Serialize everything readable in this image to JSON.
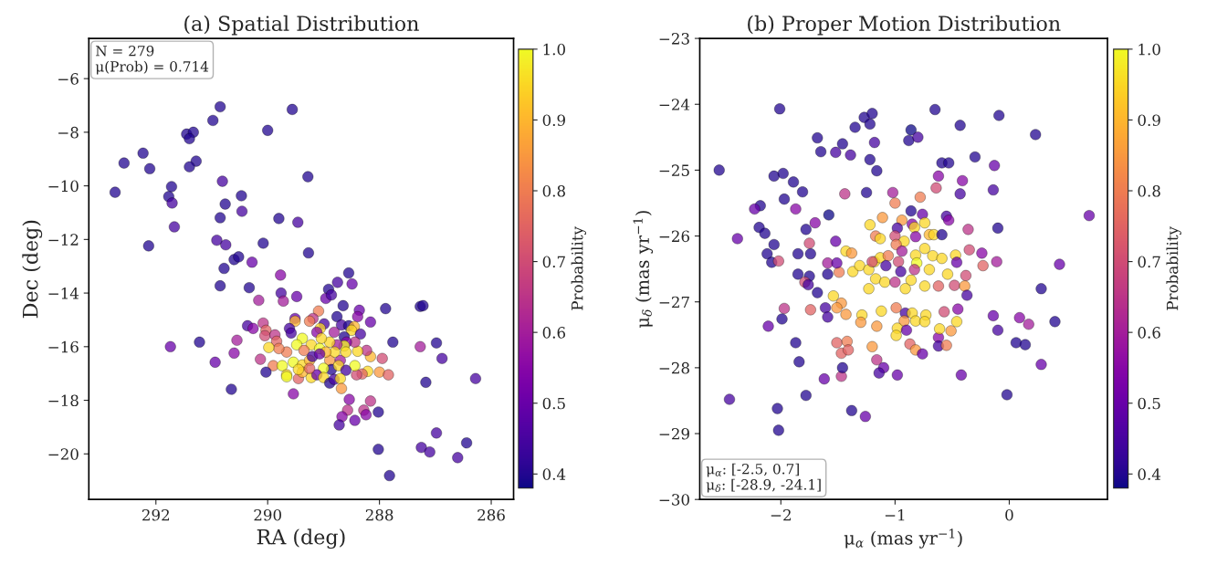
{
  "chart_data": [
    {
      "type": "scatter",
      "title": "(a) Spatial Distribution",
      "xlabel": "RA (deg)",
      "ylabel": "Dec (deg)",
      "clabel": "Probability",
      "marker": "circle",
      "xlim": [
        293.2,
        285.6
      ],
      "ylim": [
        -21.7,
        -4.5
      ],
      "xticks": [
        292,
        290,
        288,
        286
      ],
      "yticks": [
        {
          "value": -20,
          "label": "−20"
        },
        {
          "value": -18,
          "label": "−18"
        },
        {
          "value": -16,
          "label": "−16"
        },
        {
          "value": -14,
          "label": "−14"
        },
        {
          "value": -12,
          "label": "−12"
        },
        {
          "value": -10,
          "label": "−10"
        },
        {
          "value": -8,
          "label": "−8"
        },
        {
          "value": -6,
          "label": "−6"
        }
      ],
      "clim": [
        0.38,
        1.0
      ],
      "cticks": [
        0.4,
        0.5,
        0.6,
        0.7,
        0.8,
        0.9,
        {
          "value": 1.0,
          "label": "1.0"
        }
      ],
      "annotations": [
        "N = 279",
        "μ(Prob) = 0.714"
      ],
      "x": [
        290.85,
        289.56,
        290.98,
        290.0,
        291.45,
        291.33,
        291.4,
        292.23,
        292.57,
        292.11,
        291.28,
        291.4,
        289.28,
        290.81,
        292.73,
        291.72,
        291.77,
        291.71,
        290.47,
        290.76,
        290.46,
        290.85,
        289.8,
        289.46,
        291.67,
        290.91,
        290.75,
        290.08,
        292.13,
        289.27,
        290.6,
        290.52,
        290.28,
        290.78,
        290.85,
        290.33,
        289.77,
        289.76,
        289.48,
        290.16,
        289.72,
        288.55,
        288.75,
        288.49,
        288.91,
        288.96,
        288.86,
        287.89,
        287.27,
        287.22,
        288.65,
        288.76,
        288.36,
        288.39,
        288.16,
        289.09,
        289.19,
        289.25,
        289.51,
        289.51,
        290.36,
        290.26,
        290.08,
        290.03,
        290.05,
        289.87,
        289.84,
        289.61,
        289.58,
        288.99,
        289.06,
        289.12,
        288.68,
        288.55,
        288.45,
        288.5,
        288.34,
        288.81,
        288.63,
        287.76,
        286.98,
        287.27,
        286.88,
        286.28,
        287.17,
        287.95,
        288.0,
        287.84,
        288.16,
        288.23,
        288.21,
        288.31,
        288.41,
        288.44,
        288.39,
        288.44,
        288.59,
        288.63,
        288.76,
        288.89,
        289.04,
        289.38,
        289.48,
        289.22,
        289.07,
        289.35,
        289.66,
        289.8,
        289.98,
        290.13,
        289.9,
        289.74,
        289.54,
        289.38,
        289.25,
        289.2,
        288.89,
        288.7,
        288.6,
        288.8,
        288.96,
        289.07,
        288.86,
        289.0,
        288.73,
        288.6,
        289.66,
        289.66,
        289.45,
        289.22,
        289.12,
        289.0,
        288.89,
        288.81,
        288.7,
        289.38,
        290.03,
        289.45,
        289.25,
        288.68,
        289.54,
        290.65,
        290.94,
        290.6,
        290.55,
        291.22,
        291.74,
        288.54,
        288.16,
        288.57,
        288.28,
        288.24,
        288.67,
        288.44,
        288.02,
        288.72,
        288.02,
        286.98,
        287.25,
        287.1,
        286.44,
        286.6,
        287.82
      ],
      "values": [
        -7.05,
        -7.15,
        -7.56,
        -7.93,
        -8.07,
        -8.0,
        -8.24,
        -8.78,
        -9.15,
        -9.36,
        -9.08,
        -9.29,
        -9.66,
        -9.83,
        -10.24,
        -10.03,
        -10.4,
        -10.64,
        -10.37,
        -10.68,
        -10.95,
        -11.19,
        -11.22,
        -11.36,
        -11.53,
        -12.03,
        -12.2,
        -12.14,
        -12.24,
        -12.5,
        -12.75,
        -12.65,
        -12.85,
        -13.08,
        -13.73,
        -13.8,
        -13.33,
        -14.0,
        -14.13,
        -14.27,
        -14.3,
        -13.25,
        -13.6,
        -13.66,
        -13.86,
        -14.2,
        -14.07,
        -14.58,
        -14.5,
        -14.47,
        -14.47,
        -14.88,
        -14.64,
        -14.88,
        -15.08,
        -14.67,
        -14.95,
        -15.05,
        -14.95,
        -15.05,
        -15.22,
        -15.32,
        -15.12,
        -15.39,
        -15.59,
        -15.56,
        -15.8,
        -15.32,
        -15.49,
        -15.15,
        -15.32,
        -15.46,
        -15.19,
        -15.22,
        -15.25,
        -15.39,
        -15.53,
        -15.46,
        -15.63,
        -15.83,
        -15.86,
        -16.0,
        -16.44,
        -17.19,
        -17.33,
        -16.44,
        -16.95,
        -17.05,
        -16.37,
        -16.14,
        -16.92,
        -17.02,
        -17.05,
        -16.71,
        -16.17,
        -15.83,
        -15.83,
        -15.97,
        -15.93,
        -15.83,
        -15.69,
        -15.69,
        -15.93,
        -15.93,
        -16.07,
        -16.14,
        -16.2,
        -16.07,
        -16.03,
        -16.47,
        -16.71,
        -16.71,
        -16.58,
        -16.68,
        -16.51,
        -16.37,
        -16.51,
        -16.51,
        -16.2,
        -16.2,
        -16.2,
        -16.27,
        -16.85,
        -16.81,
        -16.71,
        -16.88,
        -17.05,
        -17.12,
        -17.19,
        -17.15,
        -17.05,
        -17.15,
        -17.36,
        -17.22,
        -17.19,
        -16.95,
        -16.95,
        -16.85,
        -16.81,
        -17.56,
        -17.76,
        -17.59,
        -16.58,
        -16.24,
        -15.76,
        -15.83,
        -16.0,
        -17.97,
        -18.03,
        -18.37,
        -18.37,
        -18.54,
        -18.61,
        -18.75,
        -18.44,
        -18.92,
        -19.83,
        -19.22,
        -19.76,
        -19.93,
        -19.59,
        -20.14,
        -20.81
      ],
      "cvalues": [
        0.4,
        0.4,
        0.4,
        0.4,
        0.4,
        0.4,
        0.4,
        0.4,
        0.4,
        0.4,
        0.4,
        0.4,
        0.4,
        0.45,
        0.4,
        0.4,
        0.4,
        0.45,
        0.4,
        0.4,
        0.45,
        0.4,
        0.4,
        0.45,
        0.45,
        0.45,
        0.45,
        0.4,
        0.4,
        0.4,
        0.4,
        0.4,
        0.5,
        0.4,
        0.4,
        0.4,
        0.55,
        0.45,
        0.5,
        0.6,
        0.6,
        0.4,
        0.45,
        0.5,
        0.4,
        0.5,
        0.45,
        0.4,
        0.4,
        0.4,
        0.4,
        0.4,
        0.5,
        0.55,
        0.5,
        0.8,
        0.65,
        0.8,
        0.5,
        0.9,
        0.45,
        0.55,
        0.65,
        0.75,
        0.7,
        0.65,
        0.75,
        0.45,
        0.45,
        0.45,
        0.95,
        0.55,
        0.45,
        0.4,
        0.9,
        0.95,
        0.45,
        0.6,
        0.4,
        0.4,
        0.4,
        0.6,
        0.45,
        0.45,
        0.4,
        0.7,
        0.85,
        0.75,
        0.9,
        0.65,
        0.95,
        0.75,
        0.7,
        1.0,
        0.95,
        0.65,
        0.55,
        1.0,
        0.6,
        0.95,
        0.95,
        1.0,
        1.0,
        0.95,
        1.0,
        0.8,
        0.8,
        0.8,
        0.95,
        0.65,
        0.8,
        1.0,
        1.0,
        0.95,
        0.9,
        0.45,
        0.85,
        0.6,
        0.95,
        0.95,
        0.9,
        0.5,
        0.4,
        1.0,
        0.95,
        0.45,
        0.95,
        1.0,
        0.75,
        0.95,
        0.5,
        0.95,
        0.4,
        0.45,
        0.95,
        0.9,
        0.4,
        0.95,
        0.75,
        0.85,
        0.55,
        0.4,
        0.5,
        0.55,
        0.6,
        0.4,
        0.5,
        0.55,
        0.65,
        0.65,
        0.65,
        0.55,
        0.55,
        0.5,
        0.4,
        0.45,
        0.4,
        0.45,
        0.45,
        0.45,
        0.4,
        0.45,
        0.4
      ]
    },
    {
      "type": "scatter",
      "title": "(b) Proper Motion Distribution",
      "xlabel": "μ$_{α}$ (mas yr$^{−1}$)",
      "ylabel": "μ$_{δ}$ (mas yr$^{−1}$)",
      "clabel": "Probability",
      "marker": "circle",
      "xlim": [
        -2.71,
        0.86
      ],
      "ylim": [
        -30,
        -23
      ],
      "xticks": [
        {
          "value": -2,
          "label": "−2"
        },
        {
          "value": -1,
          "label": "−1"
        },
        0
      ],
      "yticks": [
        {
          "value": -30,
          "label": "−30"
        },
        {
          "value": -29,
          "label": "−29"
        },
        {
          "value": -28,
          "label": "−28"
        },
        {
          "value": -27,
          "label": "−27"
        },
        {
          "value": -26,
          "label": "−26"
        },
        {
          "value": -25,
          "label": "−25"
        },
        {
          "value": -24,
          "label": "−24"
        },
        {
          "value": -23,
          "label": "−23"
        }
      ],
      "clim": [
        0.38,
        1.0
      ],
      "cticks": [
        0.4,
        0.5,
        0.6,
        0.7,
        0.8,
        0.9,
        {
          "value": 1.0,
          "label": "1.0"
        }
      ],
      "annotations": [
        "μ$_{α}$: [-2.5, 0.7]",
        "μ$_{δ}$: [-28.9, -24.1]"
      ],
      "x": [
        -2.54,
        -2.01,
        -1.68,
        -1.65,
        -1.52,
        -1.46,
        -1.39,
        -1.35,
        -1.27,
        -1.2,
        -1.22,
        -1.18,
        -1.22,
        -1.16,
        -0.86,
        -0.88,
        -0.8,
        -0.65,
        -0.43,
        -0.09,
        0.23,
        -0.3,
        -0.59,
        -0.53,
        -0.13,
        -0.62,
        -0.41,
        -0.64,
        -0.43,
        -0.14,
        0.7,
        -2.06,
        -1.98,
        -1.89,
        -1.81,
        -1.97,
        -2.18,
        -2.23,
        -1.87,
        -1.44,
        -1.25,
        -1.02,
        -1.0,
        -0.78,
        -0.86,
        -0.76,
        -0.55,
        -0.53,
        -0.36,
        -0.1,
        -2.38,
        -2.19,
        -2.14,
        -2.06,
        -2.12,
        -2.08,
        -1.85,
        -1.74,
        -1.78,
        -1.75,
        -2.02,
        -1.7,
        -1.58,
        -1.52,
        -1.59,
        -1.59,
        -1.49,
        -1.51,
        -1.85,
        -1.75,
        -1.79,
        -1.43,
        -1.38,
        -1.22,
        -1.11,
        -0.94,
        -0.98,
        -0.85,
        -0.83,
        -0.74,
        -0.82,
        -0.7,
        -0.66,
        -0.59,
        -1.17,
        -1.13,
        -1.0,
        -0.92,
        -0.99,
        -0.74,
        -0.35,
        -0.24,
        -0.11,
        -0.23,
        0.44,
        0.28,
        -1.18,
        -1.13,
        -1.06,
        -0.94,
        -0.82,
        -0.67,
        -0.59,
        -0.47,
        -0.46,
        -0.97,
        -1.08,
        -1.37,
        -1.31,
        -1.23,
        -1.2,
        -0.81,
        -0.7,
        -0.54,
        -0.38,
        -0.95,
        -0.83,
        -1.17,
        -1.09,
        -1.0,
        -0.86,
        -0.74,
        -0.62,
        -0.48,
        -0.39,
        -1.23,
        -0.91,
        -1.76,
        -1.68,
        -1.54,
        -1.47,
        -1.51,
        -1.43,
        -1.61,
        -1.59,
        -1.74,
        -1.97,
        -1.99,
        -2.11,
        -1.87,
        -1.84,
        -1.51,
        -1.42,
        -1.47,
        -1.41,
        -1.29,
        -1.3,
        -1.16,
        -1.12,
        -1.2,
        -1.16,
        -1.1,
        -1.14,
        -0.98,
        -1.47,
        -1.46,
        -1.62,
        -1.78,
        -2.45,
        -2.03,
        -2.02,
        -1.38,
        -1.26,
        -0.99,
        -0.91,
        -0.85,
        -0.82,
        -0.73,
        -0.74,
        -0.92,
        -0.98,
        -0.9,
        -0.99,
        -0.87,
        -0.82,
        -0.76,
        -0.62,
        -0.62,
        -0.55,
        -0.61,
        -0.51,
        -0.46,
        -0.45,
        -0.57,
        -0.37,
        -0.42,
        -0.14,
        -0.1,
        0.09,
        0.17,
        0.06,
        0.14,
        0.28,
        0.4,
        -0.02
      ],
      "values": [
        -25.0,
        -24.07,
        -24.51,
        -24.72,
        -24.73,
        -24.6,
        -24.77,
        -24.35,
        -24.2,
        -24.14,
        -24.3,
        -24.58,
        -24.84,
        -25.01,
        -24.39,
        -24.55,
        -24.5,
        -24.08,
        -24.32,
        -24.17,
        -24.46,
        -24.8,
        -24.89,
        -24.89,
        -24.93,
        -25.09,
        -25.16,
        -25.27,
        -25.36,
        -25.3,
        -25.69,
        -25.09,
        -25.05,
        -25.18,
        -25.33,
        -25.44,
        -25.54,
        -25.59,
        -25.59,
        -25.36,
        -25.34,
        -25.34,
        -25.5,
        -25.41,
        -25.62,
        -25.67,
        -25.7,
        -25.76,
        -25.9,
        -25.88,
        -26.04,
        -25.87,
        -25.96,
        -26.13,
        -26.27,
        -26.4,
        -26.27,
        -26.27,
        -25.9,
        -26.11,
        -26.38,
        -25.8,
        -25.68,
        -26.08,
        -26.41,
        -26.58,
        -26.55,
        -26.41,
        -26.58,
        -26.61,
        -26.7,
        -26.23,
        -26.26,
        -25.83,
        -25.72,
        -25.76,
        -25.88,
        -25.82,
        -25.87,
        -25.8,
        -26.01,
        -25.98,
        -25.98,
        -25.98,
        -26.0,
        -26.04,
        -26.0,
        -26.08,
        -26.13,
        -26.19,
        -26.21,
        -26.26,
        -26.39,
        -26.45,
        -26.43,
        -26.8,
        -26.39,
        -26.33,
        -26.3,
        -26.23,
        -26.29,
        -26.3,
        -26.34,
        -26.29,
        -26.4,
        -26.39,
        -26.45,
        -26.54,
        -26.45,
        -26.51,
        -26.39,
        -26.41,
        -26.51,
        -26.58,
        -26.6,
        -26.54,
        -26.51,
        -26.65,
        -26.7,
        -26.7,
        -26.67,
        -26.76,
        -26.76,
        -26.75,
        -26.76,
        -26.8,
        -26.8,
        -26.74,
        -26.86,
        -26.91,
        -27.02,
        -27.09,
        -27.19,
        -27.09,
        -27.23,
        -27.12,
        -27.1,
        -27.26,
        -27.37,
        -27.62,
        -27.91,
        -27.62,
        -27.6,
        -27.78,
        -27.73,
        -27.2,
        -27.31,
        -27.37,
        -27.14,
        -27.68,
        -27.88,
        -28.0,
        -28.08,
        -28.11,
        -28.13,
        -28.0,
        -28.17,
        -28.42,
        -28.48,
        -28.62,
        -28.95,
        -28.65,
        -28.74,
        -27.09,
        -27.17,
        -27.17,
        -27.29,
        -27.2,
        -27.3,
        -27.29,
        -27.4,
        -27.43,
        -27.51,
        -27.64,
        -27.73,
        -27.79,
        -27.54,
        -27.67,
        -27.66,
        -27.41,
        -27.44,
        -27.3,
        -27.11,
        -27.15,
        -26.9,
        -28.11,
        -27.21,
        -27.43,
        -27.24,
        -27.34,
        -27.62,
        -27.65,
        -27.95,
        -27.3,
        -28.41
      ],
      "cvalues": [
        0.4,
        0.4,
        0.4,
        0.4,
        0.45,
        0.4,
        0.45,
        0.4,
        0.4,
        0.4,
        0.4,
        0.45,
        0.4,
        0.4,
        0.38,
        0.4,
        0.45,
        0.4,
        0.4,
        0.4,
        0.4,
        0.4,
        0.4,
        0.4,
        0.5,
        0.55,
        0.55,
        0.7,
        0.45,
        0.45,
        0.5,
        0.4,
        0.4,
        0.4,
        0.4,
        0.4,
        0.4,
        0.5,
        0.55,
        0.65,
        0.4,
        0.6,
        0.8,
        0.8,
        0.4,
        0.5,
        0.45,
        0.55,
        0.65,
        0.4,
        0.5,
        0.4,
        0.4,
        0.4,
        0.4,
        0.4,
        0.4,
        0.4,
        0.4,
        0.7,
        0.7,
        0.55,
        0.38,
        0.5,
        0.6,
        0.4,
        0.8,
        0.5,
        0.4,
        0.4,
        0.7,
        0.95,
        0.85,
        0.95,
        0.85,
        0.85,
        0.45,
        0.55,
        0.95,
        0.95,
        0.55,
        0.9,
        0.95,
        0.4,
        0.8,
        0.95,
        0.7,
        0.95,
        0.8,
        0.95,
        0.7,
        0.55,
        0.6,
        0.75,
        0.5,
        0.4,
        0.95,
        0.95,
        0.8,
        0.6,
        0.95,
        0.95,
        0.95,
        0.95,
        0.5,
        0.7,
        0.45,
        0.95,
        0.95,
        0.95,
        0.7,
        1.0,
        0.95,
        0.95,
        0.7,
        0.45,
        0.65,
        0.95,
        0.95,
        0.65,
        0.95,
        0.95,
        0.75,
        0.7,
        0.85,
        0.95,
        0.95,
        0.45,
        0.4,
        0.95,
        0.85,
        0.85,
        0.85,
        0.45,
        0.45,
        0.75,
        0.65,
        0.4,
        0.5,
        0.4,
        0.4,
        0.75,
        0.8,
        0.75,
        0.75,
        0.95,
        0.85,
        0.85,
        0.95,
        0.85,
        0.65,
        0.5,
        0.45,
        0.5,
        0.65,
        0.4,
        0.5,
        0.4,
        0.45,
        0.4,
        0.4,
        0.4,
        0.5,
        0.8,
        0.45,
        0.95,
        0.95,
        0.95,
        0.95,
        0.85,
        0.95,
        0.5,
        0.95,
        0.75,
        0.85,
        0.5,
        0.55,
        0.45,
        0.8,
        0.95,
        0.85,
        0.95,
        0.55,
        0.7,
        0.45,
        0.5,
        0.5,
        0.45,
        0.55,
        0.6,
        0.4,
        0.4,
        0.5,
        0.4,
        0.4
      ]
    }
  ]
}
